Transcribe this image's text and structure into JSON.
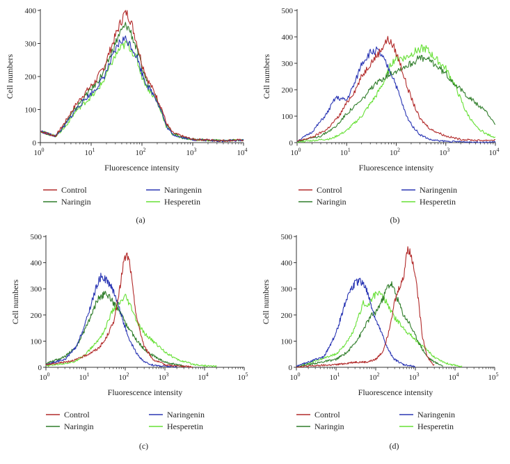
{
  "colors": {
    "Control": "#b22a2a",
    "Naringenin": "#2a36b4",
    "Naringin": "#2f7d2a",
    "Hesperetin": "#66e035",
    "axis": "#333333"
  },
  "legend": [
    "Control",
    "Naringenin",
    "Naringin",
    "Hesperetin"
  ],
  "chart_data": [
    {
      "type": "line",
      "panel": "(a)",
      "xlabel": "Fluorescence intensity",
      "ylabel": "Cell numbers",
      "xscale": "log",
      "xlim": [
        1,
        10000
      ],
      "ylim": [
        0,
        400
      ],
      "yticks": [
        0,
        100,
        200,
        300,
        400
      ],
      "xticks": [
        {
          "value": 1,
          "base": "10",
          "exp": "0"
        },
        {
          "value": 10,
          "base": "10",
          "exp": "1"
        },
        {
          "value": 100,
          "base": "10",
          "exp": "2"
        },
        {
          "value": 1000,
          "base": "10",
          "exp": "3"
        },
        {
          "value": 10000,
          "base": "10",
          "exp": "4"
        }
      ],
      "series": [
        {
          "name": "Control",
          "x": [
            1,
            1.5,
            2,
            3,
            5,
            8,
            12,
            18,
            25,
            35,
            45,
            50,
            60,
            80,
            100,
            130,
            180,
            250,
            300,
            400,
            600,
            1000,
            2000,
            4000,
            10000
          ],
          "y": [
            35,
            25,
            20,
            60,
            115,
            155,
            185,
            230,
            290,
            350,
            390,
            395,
            370,
            300,
            240,
            190,
            150,
            100,
            60,
            30,
            20,
            10,
            8,
            6,
            8
          ]
        },
        {
          "name": "Naringin",
          "x": [
            1,
            1.5,
            2,
            3,
            5,
            8,
            12,
            18,
            25,
            35,
            45,
            50,
            60,
            80,
            100,
            130,
            180,
            250,
            300,
            400,
            600,
            1000,
            2000,
            4000,
            10000
          ],
          "y": [
            35,
            25,
            20,
            55,
            105,
            145,
            175,
            215,
            270,
            325,
            350,
            355,
            335,
            280,
            225,
            180,
            145,
            95,
            55,
            28,
            18,
            10,
            8,
            6,
            8
          ]
        },
        {
          "name": "Naringenin",
          "x": [
            1,
            1.5,
            2,
            3,
            5,
            8,
            12,
            18,
            25,
            35,
            45,
            50,
            60,
            80,
            100,
            130,
            180,
            250,
            300,
            400,
            600,
            1000,
            2000,
            4000,
            10000
          ],
          "y": [
            35,
            25,
            20,
            50,
            100,
            135,
            160,
            200,
            250,
            300,
            315,
            310,
            295,
            260,
            210,
            170,
            140,
            90,
            50,
            25,
            16,
            9,
            7,
            5,
            8
          ]
        },
        {
          "name": "Hesperetin",
          "x": [
            1,
            1.5,
            2,
            3,
            5,
            8,
            12,
            18,
            25,
            35,
            45,
            50,
            60,
            80,
            100,
            130,
            180,
            250,
            300,
            400,
            600,
            1000,
            2000,
            4000,
            10000
          ],
          "y": [
            35,
            25,
            20,
            45,
            95,
            125,
            150,
            190,
            240,
            280,
            295,
            300,
            285,
            250,
            200,
            165,
            135,
            85,
            50,
            25,
            15,
            9,
            7,
            5,
            8
          ]
        }
      ]
    },
    {
      "type": "line",
      "panel": "(b)",
      "xlabel": "Fluorescence intensity",
      "ylabel": "Cell numbers",
      "xscale": "log",
      "xlim": [
        1,
        10000
      ],
      "ylim": [
        0,
        500
      ],
      "yticks": [
        0,
        100,
        200,
        300,
        400,
        500
      ],
      "xticks": [
        {
          "value": 1,
          "base": "10",
          "exp": "0"
        },
        {
          "value": 10,
          "base": "10",
          "exp": "1"
        },
        {
          "value": 100,
          "base": "10",
          "exp": "2"
        },
        {
          "value": 1000,
          "base": "10",
          "exp": "3"
        },
        {
          "value": 10000,
          "base": "10",
          "exp": "4"
        }
      ],
      "series": [
        {
          "name": "Control",
          "x": [
            1,
            2,
            4,
            7,
            10,
            15,
            20,
            30,
            45,
            60,
            70,
            90,
            120,
            160,
            220,
            300,
            500,
            1000,
            2000,
            5000,
            10000
          ],
          "y": [
            5,
            20,
            50,
            100,
            150,
            200,
            250,
            300,
            340,
            380,
            390,
            360,
            300,
            220,
            150,
            90,
            50,
            25,
            12,
            8,
            10
          ]
        },
        {
          "name": "Naringenin",
          "x": [
            1,
            2,
            4,
            6,
            10,
            15,
            20,
            30,
            40,
            50,
            70,
            90,
            120,
            160,
            220,
            300,
            500,
            1000,
            2000,
            5000,
            10000
          ],
          "y": [
            5,
            40,
            110,
            170,
            160,
            230,
            300,
            340,
            350,
            330,
            280,
            240,
            170,
            100,
            60,
            30,
            10,
            5,
            3,
            2,
            2
          ]
        },
        {
          "name": "Naringin",
          "x": [
            1,
            3,
            6,
            10,
            20,
            30,
            50,
            80,
            120,
            200,
            300,
            500,
            1000,
            2000,
            4000,
            7000,
            10000
          ],
          "y": [
            5,
            25,
            60,
            110,
            160,
            200,
            240,
            265,
            280,
            300,
            320,
            310,
            260,
            200,
            150,
            110,
            70
          ]
        },
        {
          "name": "Hesperetin",
          "x": [
            1,
            5,
            10,
            20,
            40,
            60,
            80,
            100,
            150,
            200,
            300,
            400,
            600,
            1000,
            1500,
            2500,
            4000,
            7000,
            10000
          ],
          "y": [
            2,
            15,
            45,
            100,
            180,
            240,
            300,
            320,
            320,
            335,
            355,
            355,
            320,
            280,
            220,
            120,
            60,
            30,
            20
          ]
        }
      ]
    },
    {
      "type": "line",
      "panel": "(c)",
      "xlabel": "Fluorescence intensity",
      "ylabel": "Cell numbers",
      "xscale": "log",
      "xlim": [
        1,
        100000
      ],
      "ylim": [
        0,
        500
      ],
      "yticks": [
        0,
        100,
        200,
        300,
        400,
        500
      ],
      "xticks": [
        {
          "value": 1,
          "base": "10",
          "exp": "0"
        },
        {
          "value": 10,
          "base": "10",
          "exp": "1"
        },
        {
          "value": 100,
          "base": "10",
          "exp": "2"
        },
        {
          "value": 1000,
          "base": "10",
          "exp": "3"
        },
        {
          "value": 10000,
          "base": "10",
          "exp": "4"
        },
        {
          "value": 100000,
          "base": "10",
          "exp": "5"
        }
      ],
      "series": [
        {
          "name": "Control",
          "x": [
            1,
            3,
            6,
            10,
            20,
            30,
            50,
            70,
            90,
            110,
            130,
            160,
            200,
            300,
            500,
            1000,
            2000,
            5000
          ],
          "y": [
            10,
            20,
            30,
            45,
            70,
            100,
            170,
            280,
            400,
            430,
            400,
            280,
            180,
            80,
            30,
            10,
            5,
            2
          ]
        },
        {
          "name": "Naringenin",
          "x": [
            1,
            3,
            6,
            10,
            15,
            20,
            25,
            30,
            40,
            55,
            80,
            120,
            200,
            300,
            500,
            1000,
            2000
          ],
          "y": [
            10,
            30,
            80,
            170,
            260,
            320,
            350,
            340,
            320,
            280,
            200,
            110,
            50,
            20,
            8,
            4,
            2
          ]
        },
        {
          "name": "Naringin",
          "x": [
            1,
            3,
            6,
            10,
            15,
            20,
            30,
            40,
            60,
            80,
            100,
            150,
            200,
            300,
            500,
            1000,
            2000,
            3000
          ],
          "y": [
            15,
            40,
            80,
            150,
            210,
            260,
            280,
            270,
            230,
            200,
            170,
            130,
            100,
            70,
            45,
            20,
            10,
            5
          ]
        },
        {
          "name": "Hesperetin",
          "x": [
            1,
            5,
            10,
            20,
            30,
            40,
            50,
            60,
            80,
            100,
            150,
            200,
            300,
            500,
            1000,
            2000,
            5000,
            10000,
            20000
          ],
          "y": [
            5,
            20,
            50,
            100,
            140,
            190,
            220,
            230,
            250,
            270,
            220,
            170,
            130,
            100,
            60,
            30,
            12,
            6,
            4
          ]
        }
      ]
    },
    {
      "type": "line",
      "panel": "(d)",
      "xlabel": "Fluorescence intensity",
      "ylabel": "Cell numbers",
      "xscale": "log",
      "xlim": [
        1,
        100000
      ],
      "ylim": [
        0,
        500
      ],
      "yticks": [
        0,
        100,
        200,
        300,
        400,
        500
      ],
      "xticks": [
        {
          "value": 1,
          "base": "10",
          "exp": "0"
        },
        {
          "value": 10,
          "base": "10",
          "exp": "1"
        },
        {
          "value": 100,
          "base": "10",
          "exp": "2"
        },
        {
          "value": 1000,
          "base": "10",
          "exp": "3"
        },
        {
          "value": 10000,
          "base": "10",
          "exp": "4"
        },
        {
          "value": 100000,
          "base": "10",
          "exp": "5"
        }
      ],
      "series": [
        {
          "name": "Control",
          "x": [
            1,
            10,
            30,
            60,
            100,
            150,
            200,
            300,
            400,
            500,
            600,
            700,
            800,
            1000,
            1200,
            1500,
            2000,
            3000
          ],
          "y": [
            2,
            10,
            20,
            20,
            30,
            60,
            120,
            250,
            310,
            340,
            440,
            450,
            420,
            360,
            250,
            120,
            40,
            5
          ]
        },
        {
          "name": "Naringenin",
          "x": [
            1,
            5,
            10,
            15,
            20,
            30,
            40,
            50,
            60,
            80,
            100,
            150,
            200,
            300,
            500,
            1000
          ],
          "y": [
            5,
            40,
            130,
            220,
            280,
            320,
            330,
            320,
            290,
            230,
            180,
            120,
            70,
            30,
            10,
            2
          ]
        },
        {
          "name": "Naringin",
          "x": [
            1,
            10,
            20,
            40,
            60,
            80,
            100,
            150,
            200,
            250,
            300,
            400,
            500,
            700,
            1000,
            1500,
            2000,
            3000,
            5000
          ],
          "y": [
            2,
            30,
            60,
            120,
            170,
            200,
            210,
            260,
            310,
            320,
            290,
            240,
            200,
            170,
            120,
            70,
            40,
            20,
            5
          ]
        },
        {
          "name": "Hesperetin",
          "x": [
            1,
            10,
            20,
            30,
            40,
            50,
            60,
            80,
            100,
            120,
            150,
            200,
            300,
            500,
            800,
            1500,
            3000,
            6000,
            10000,
            15000
          ],
          "y": [
            2,
            50,
            100,
            150,
            210,
            250,
            230,
            260,
            280,
            285,
            270,
            240,
            190,
            150,
            120,
            80,
            40,
            15,
            8,
            3
          ]
        }
      ]
    }
  ]
}
